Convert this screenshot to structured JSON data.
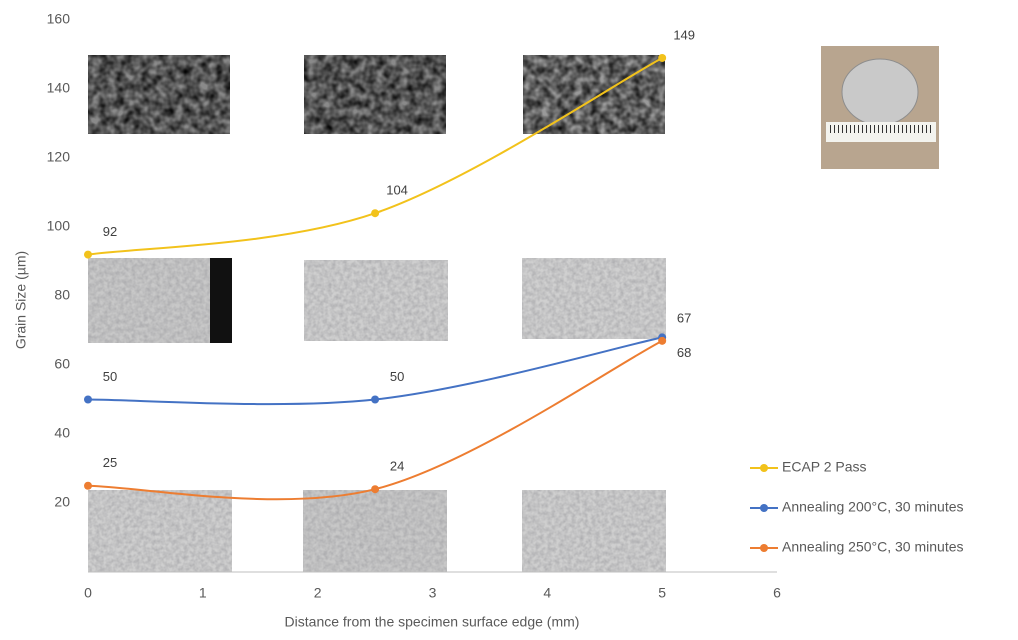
{
  "chart_data": {
    "type": "line",
    "x_label": "Distance from the specimen surface edge (mm)",
    "y_label": "Grain Size (µm)",
    "x": [
      0,
      2.5,
      5
    ],
    "series": [
      {
        "name": "ECAP 2 Pass",
        "color": "#f2c21b",
        "values": [
          92,
          104,
          149
        ]
      },
      {
        "name": "Annealing 200°C, 30 minutes",
        "color": "#4472c4",
        "values": [
          50,
          50,
          68
        ]
      },
      {
        "name": "Annealing 250°C, 30 minutes",
        "color": "#ed7d31",
        "values": [
          25,
          24,
          67
        ]
      }
    ],
    "xlim": [
      0,
      6
    ],
    "xticks": [
      0,
      1,
      2,
      3,
      4,
      5,
      6
    ],
    "ylim": [
      0,
      160
    ],
    "yticks": [
      20,
      40,
      60,
      80,
      100,
      120,
      140,
      160
    ],
    "smooth": true,
    "data_labels": true,
    "legend": "right"
  }
}
